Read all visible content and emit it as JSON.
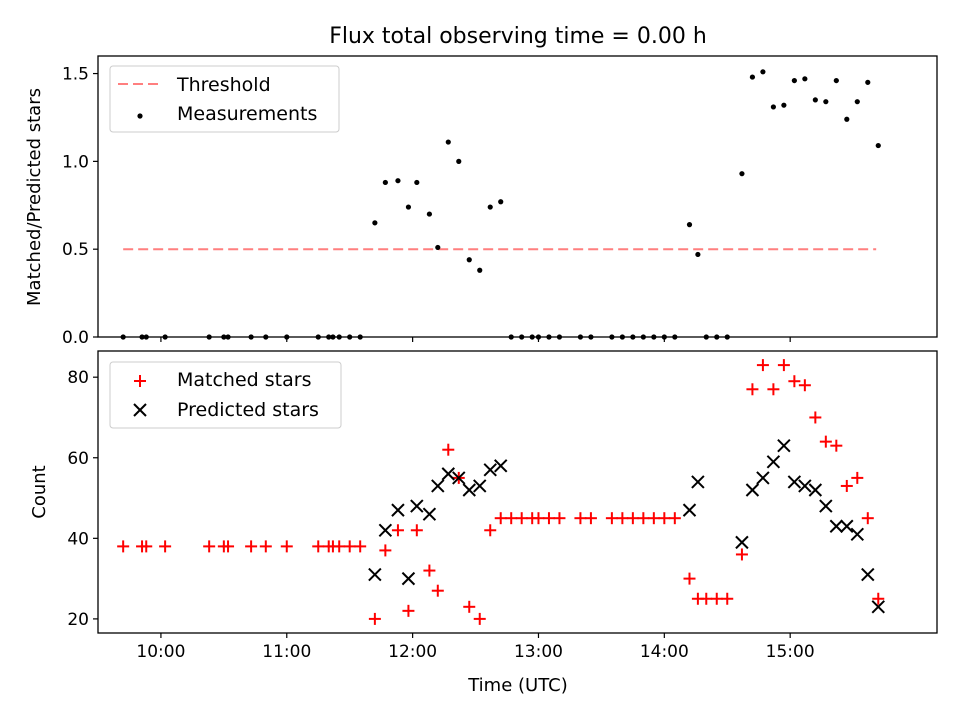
{
  "title": "Flux total observing time = 0.00 h",
  "chart_data": [
    {
      "type": "scatter",
      "ylabel": "Matched/Predicted stars",
      "xlim": [
        "09:30",
        "16:10"
      ],
      "ylim": [
        0,
        1.6
      ],
      "yticks": [
        0.0,
        0.5,
        1.0,
        1.5
      ],
      "ytick_labels": [
        "0.0",
        "0.5",
        "1.0",
        "1.5"
      ],
      "legend_position": "upper-left",
      "threshold": {
        "name": "Threshold",
        "y": 0.5,
        "x_start": "09:42",
        "x_end": "15:41",
        "color": "#ff7f7f"
      },
      "series": [
        {
          "name": "Measurements",
          "marker": "dot",
          "color": "#000000",
          "points": [
            [
              "09:42",
              0
            ],
            [
              "09:51",
              0
            ],
            [
              "09:53",
              0
            ],
            [
              "10:02",
              0
            ],
            [
              "10:23",
              0
            ],
            [
              "10:30",
              0
            ],
            [
              "10:32",
              0
            ],
            [
              "10:43",
              0
            ],
            [
              "10:50",
              0
            ],
            [
              "11:00",
              0
            ],
            [
              "11:15",
              0
            ],
            [
              "11:20",
              0
            ],
            [
              "11:22",
              0
            ],
            [
              "11:25",
              0
            ],
            [
              "11:30",
              0
            ],
            [
              "11:35",
              0
            ],
            [
              "11:42",
              0.65
            ],
            [
              "11:47",
              0.88
            ],
            [
              "11:53",
              0.89
            ],
            [
              "11:58",
              0.74
            ],
            [
              "12:02",
              0.88
            ],
            [
              "12:08",
              0.7
            ],
            [
              "12:12",
              0.51
            ],
            [
              "12:17",
              1.11
            ],
            [
              "12:22",
              1.0
            ],
            [
              "12:27",
              0.44
            ],
            [
              "12:32",
              0.38
            ],
            [
              "12:37",
              0.74
            ],
            [
              "12:42",
              0.77
            ],
            [
              "12:47",
              0
            ],
            [
              "12:52",
              0
            ],
            [
              "12:57",
              0
            ],
            [
              "13:00",
              0
            ],
            [
              "13:05",
              0
            ],
            [
              "13:10",
              0
            ],
            [
              "13:20",
              0
            ],
            [
              "13:25",
              0
            ],
            [
              "13:35",
              0
            ],
            [
              "13:40",
              0
            ],
            [
              "13:45",
              0
            ],
            [
              "13:50",
              0
            ],
            [
              "13:55",
              0
            ],
            [
              "14:00",
              0
            ],
            [
              "14:05",
              0
            ],
            [
              "14:12",
              0.64
            ],
            [
              "14:16",
              0.47
            ],
            [
              "14:20",
              0
            ],
            [
              "14:25",
              0
            ],
            [
              "14:30",
              0
            ],
            [
              "14:37",
              0.93
            ],
            [
              "14:42",
              1.48
            ],
            [
              "14:47",
              1.51
            ],
            [
              "14:52",
              1.31
            ],
            [
              "14:57",
              1.32
            ],
            [
              "15:02",
              1.46
            ],
            [
              "15:07",
              1.47
            ],
            [
              "15:12",
              1.35
            ],
            [
              "15:17",
              1.34
            ],
            [
              "15:22",
              1.46
            ],
            [
              "15:27",
              1.24
            ],
            [
              "15:32",
              1.34
            ],
            [
              "15:37",
              1.45
            ],
            [
              "15:42",
              1.09
            ]
          ]
        }
      ]
    },
    {
      "type": "scatter",
      "xlabel": "Time (UTC)",
      "ylabel": "Count",
      "xlim": [
        "09:30",
        "16:10"
      ],
      "ylim": [
        16.5,
        86.5
      ],
      "yticks": [
        20,
        40,
        60,
        80
      ],
      "ytick_labels": [
        "20",
        "40",
        "60",
        "80"
      ],
      "xtick_labels": [
        "10:00",
        "11:00",
        "12:00",
        "13:00",
        "14:00",
        "15:00"
      ],
      "legend_position": "upper-left",
      "series": [
        {
          "name": "Matched stars",
          "marker": "plus",
          "color": "#ff0000",
          "points": [
            [
              "09:42",
              38
            ],
            [
              "09:51",
              38
            ],
            [
              "09:53",
              38
            ],
            [
              "10:02",
              38
            ],
            [
              "10:23",
              38
            ],
            [
              "10:30",
              38
            ],
            [
              "10:32",
              38
            ],
            [
              "10:43",
              38
            ],
            [
              "10:50",
              38
            ],
            [
              "11:00",
              38
            ],
            [
              "11:15",
              38
            ],
            [
              "11:20",
              38
            ],
            [
              "11:22",
              38
            ],
            [
              "11:25",
              38
            ],
            [
              "11:30",
              38
            ],
            [
              "11:35",
              38
            ],
            [
              "11:42",
              20
            ],
            [
              "11:47",
              37
            ],
            [
              "11:53",
              42
            ],
            [
              "11:58",
              22
            ],
            [
              "12:02",
              42
            ],
            [
              "12:08",
              32
            ],
            [
              "12:12",
              27
            ],
            [
              "12:17",
              62
            ],
            [
              "12:22",
              55
            ],
            [
              "12:27",
              23
            ],
            [
              "12:32",
              20
            ],
            [
              "12:37",
              42
            ],
            [
              "12:42",
              45
            ],
            [
              "12:47",
              45
            ],
            [
              "12:52",
              45
            ],
            [
              "12:57",
              45
            ],
            [
              "13:00",
              45
            ],
            [
              "13:05",
              45
            ],
            [
              "13:10",
              45
            ],
            [
              "13:20",
              45
            ],
            [
              "13:25",
              45
            ],
            [
              "13:35",
              45
            ],
            [
              "13:40",
              45
            ],
            [
              "13:45",
              45
            ],
            [
              "13:50",
              45
            ],
            [
              "13:55",
              45
            ],
            [
              "14:00",
              45
            ],
            [
              "14:05",
              45
            ],
            [
              "14:12",
              30
            ],
            [
              "14:16",
              25
            ],
            [
              "14:20",
              25
            ],
            [
              "14:25",
              25
            ],
            [
              "14:30",
              25
            ],
            [
              "14:37",
              36
            ],
            [
              "14:42",
              77
            ],
            [
              "14:47",
              83
            ],
            [
              "14:52",
              77
            ],
            [
              "14:57",
              83
            ],
            [
              "15:02",
              79
            ],
            [
              "15:07",
              78
            ],
            [
              "15:12",
              70
            ],
            [
              "15:17",
              64
            ],
            [
              "15:22",
              63
            ],
            [
              "15:27",
              53
            ],
            [
              "15:32",
              55
            ],
            [
              "15:37",
              45
            ],
            [
              "15:42",
              25
            ]
          ]
        },
        {
          "name": "Predicted stars",
          "marker": "x",
          "color": "#000000",
          "points": [
            [
              "11:42",
              31
            ],
            [
              "11:47",
              42
            ],
            [
              "11:53",
              47
            ],
            [
              "11:58",
              30
            ],
            [
              "12:02",
              48
            ],
            [
              "12:08",
              46
            ],
            [
              "12:12",
              53
            ],
            [
              "12:17",
              56
            ],
            [
              "12:22",
              55
            ],
            [
              "12:27",
              52
            ],
            [
              "12:32",
              53
            ],
            [
              "12:37",
              57
            ],
            [
              "12:42",
              58
            ],
            [
              "14:12",
              47
            ],
            [
              "14:16",
              54
            ],
            [
              "14:37",
              39
            ],
            [
              "14:42",
              52
            ],
            [
              "14:47",
              55
            ],
            [
              "14:52",
              59
            ],
            [
              "14:57",
              63
            ],
            [
              "15:02",
              54
            ],
            [
              "15:07",
              53
            ],
            [
              "15:12",
              52
            ],
            [
              "15:17",
              48
            ],
            [
              "15:22",
              43
            ],
            [
              "15:27",
              43
            ],
            [
              "15:32",
              41
            ],
            [
              "15:37",
              31
            ],
            [
              "15:42",
              23
            ]
          ]
        }
      ]
    }
  ]
}
